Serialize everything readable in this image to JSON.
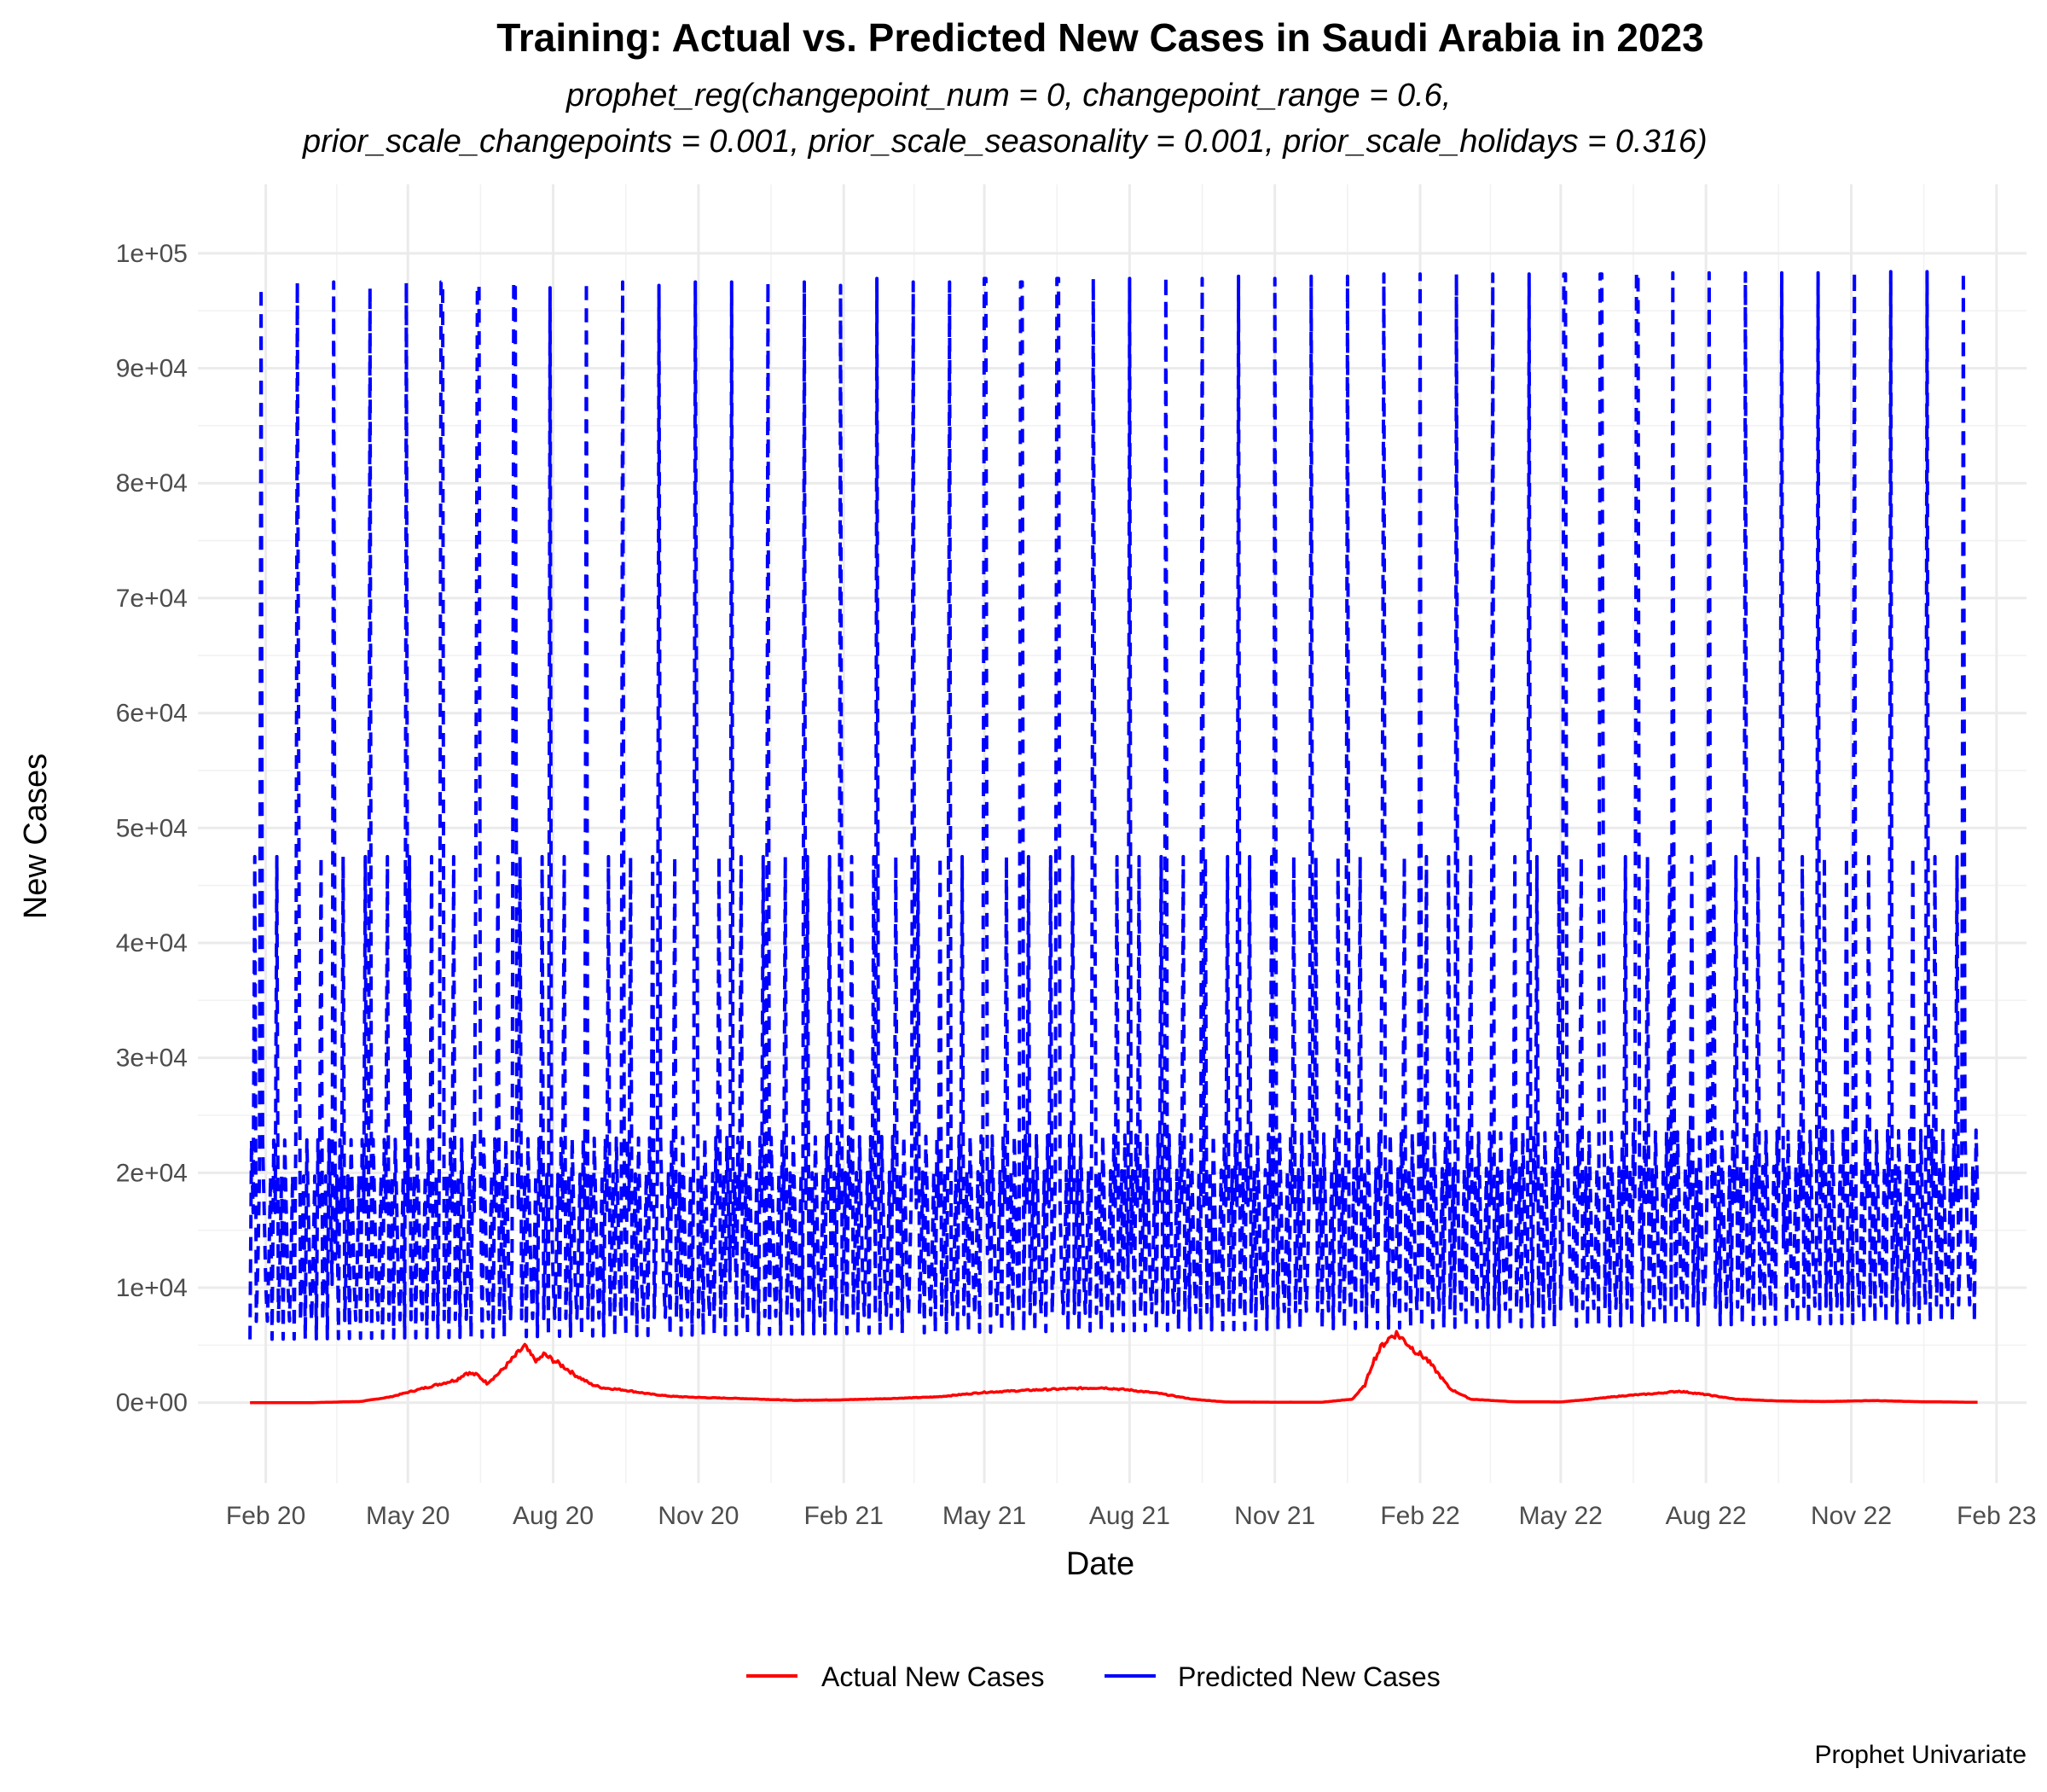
{
  "chart_data": {
    "type": "line",
    "title": "Training: Actual vs. Predicted New Cases in Saudi Arabia in 2023",
    "subtitle_lines": [
      "prophet_reg(changepoint_num = 0, changepoint_range = 0.6,",
      "prior_scale_changepoints = 0.001, prior_scale_seasonality = 0.001, prior_scale_holidays = 0.316)"
    ],
    "xlabel": "Date",
    "ylabel": "New Cases",
    "caption": "Prophet Univariate",
    "x_range": [
      "2019-12-20",
      "2023-02-20"
    ],
    "ylim": [
      -7000,
      106000
    ],
    "y_ticks": [
      0,
      10000,
      20000,
      30000,
      40000,
      50000,
      60000,
      70000,
      80000,
      90000,
      100000
    ],
    "y_tick_labels": [
      "0e+00",
      "1e+04",
      "2e+04",
      "3e+04",
      "4e+04",
      "5e+04",
      "6e+04",
      "7e+04",
      "8e+04",
      "9e+04",
      "1e+05"
    ],
    "x_ticks": [
      "2020-02-01",
      "2020-05-01",
      "2020-08-01",
      "2020-11-01",
      "2021-02-01",
      "2021-05-01",
      "2021-08-01",
      "2021-11-01",
      "2022-02-01",
      "2022-05-01",
      "2022-08-01",
      "2022-11-01",
      "2023-02-01"
    ],
    "x_tick_labels": [
      "Feb 20",
      "May 20",
      "Aug 20",
      "Nov 20",
      "Feb 21",
      "May 21",
      "Aug 21",
      "Nov 21",
      "Feb 22",
      "May 22",
      "Aug 22",
      "Nov 22",
      "Feb 23"
    ],
    "grid": true,
    "legend_position": "bottom",
    "series": [
      {
        "name": "Actual New Cases",
        "color": "#ff0000",
        "style": "solid",
        "points": [
          [
            "2020-01-22",
            0
          ],
          [
            "2020-03-01",
            0
          ],
          [
            "2020-04-01",
            100
          ],
          [
            "2020-04-20",
            500
          ],
          [
            "2020-05-01",
            900
          ],
          [
            "2020-05-15",
            1400
          ],
          [
            "2020-06-01",
            2000
          ],
          [
            "2020-06-07",
            2600
          ],
          [
            "2020-06-14",
            2400
          ],
          [
            "2020-06-20",
            1700
          ],
          [
            "2020-06-28",
            2600
          ],
          [
            "2020-07-05",
            3600
          ],
          [
            "2020-07-11",
            4500
          ],
          [
            "2020-07-14",
            4900
          ],
          [
            "2020-07-18",
            4100
          ],
          [
            "2020-07-22",
            3600
          ],
          [
            "2020-07-26",
            4200
          ],
          [
            "2020-08-01",
            3700
          ],
          [
            "2020-08-08",
            3100
          ],
          [
            "2020-08-15",
            2400
          ],
          [
            "2020-08-25",
            1600
          ],
          [
            "2020-09-01",
            1300
          ],
          [
            "2020-09-15",
            1100
          ],
          [
            "2020-10-01",
            750
          ],
          [
            "2020-10-15",
            550
          ],
          [
            "2020-11-01",
            450
          ],
          [
            "2020-12-01",
            350
          ],
          [
            "2021-01-01",
            200
          ],
          [
            "2021-02-01",
            250
          ],
          [
            "2021-03-01",
            350
          ],
          [
            "2021-04-01",
            500
          ],
          [
            "2021-05-01",
            900
          ],
          [
            "2021-06-01",
            1100
          ],
          [
            "2021-07-01",
            1250
          ],
          [
            "2021-07-15",
            1300
          ],
          [
            "2021-08-01",
            1100
          ],
          [
            "2021-08-20",
            800
          ],
          [
            "2021-09-10",
            300
          ],
          [
            "2021-10-01",
            60
          ],
          [
            "2021-11-01",
            40
          ],
          [
            "2021-12-01",
            40
          ],
          [
            "2021-12-20",
            300
          ],
          [
            "2021-12-28",
            1500
          ],
          [
            "2022-01-02",
            3500
          ],
          [
            "2022-01-08",
            5000
          ],
          [
            "2022-01-14",
            5800
          ],
          [
            "2022-01-17",
            6000
          ],
          [
            "2022-01-22",
            5400
          ],
          [
            "2022-01-28",
            4600
          ],
          [
            "2022-02-05",
            3800
          ],
          [
            "2022-02-12",
            2600
          ],
          [
            "2022-02-20",
            1200
          ],
          [
            "2022-03-05",
            300
          ],
          [
            "2022-04-01",
            80
          ],
          [
            "2022-05-01",
            60
          ],
          [
            "2022-05-20",
            300
          ],
          [
            "2022-06-10",
            600
          ],
          [
            "2022-07-01",
            800
          ],
          [
            "2022-07-15",
            1000
          ],
          [
            "2022-08-01",
            700
          ],
          [
            "2022-08-20",
            300
          ],
          [
            "2022-09-15",
            150
          ],
          [
            "2022-10-15",
            100
          ],
          [
            "2022-11-15",
            180
          ],
          [
            "2022-12-15",
            80
          ],
          [
            "2023-01-15",
            40
          ],
          [
            "2023-01-20",
            40
          ]
        ]
      },
      {
        "name": "Predicted New Cases",
        "color": "#0000ff",
        "style": "dashed",
        "spike_values": [
          97000,
          97500,
          97500,
          97000,
          97500,
          97500,
          97200,
          97500,
          97000,
          97500,
          97500,
          97200,
          97500,
          97500,
          97500,
          97500,
          97200,
          97800,
          97500,
          97500,
          97800,
          97500,
          97800,
          97800,
          97800,
          98000,
          97800,
          98000,
          97800,
          98000,
          98000,
          98200,
          98200,
          98200,
          98200,
          98200,
          98200,
          98200,
          98300,
          98300,
          98300,
          98300,
          98300,
          98300,
          98400,
          98400,
          98400,
          98400
        ],
        "secondary_peak": 47500,
        "baseline_start": 5500,
        "baseline_end": 7000
      }
    ]
  }
}
